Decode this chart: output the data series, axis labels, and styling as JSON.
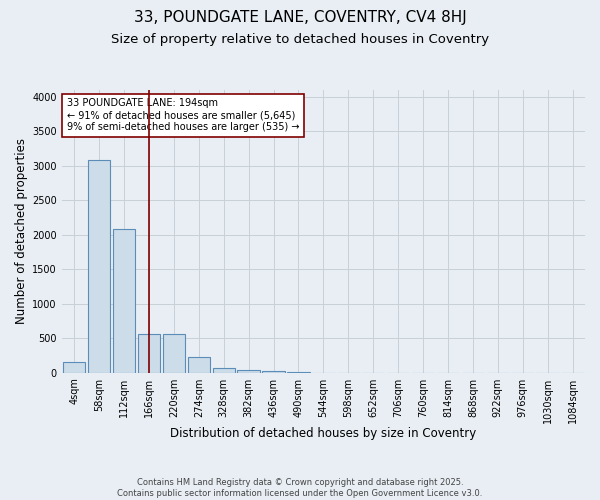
{
  "title_line1": "33, POUNDGATE LANE, COVENTRY, CV4 8HJ",
  "title_line2": "Size of property relative to detached houses in Coventry",
  "xlabel": "Distribution of detached houses by size in Coventry",
  "ylabel": "Number of detached properties",
  "bin_labels": [
    "4sqm",
    "58sqm",
    "112sqm",
    "166sqm",
    "220sqm",
    "274sqm",
    "328sqm",
    "382sqm",
    "436sqm",
    "490sqm",
    "544sqm",
    "598sqm",
    "652sqm",
    "706sqm",
    "760sqm",
    "814sqm",
    "868sqm",
    "922sqm",
    "976sqm",
    "1030sqm",
    "1084sqm"
  ],
  "bar_values": [
    150,
    3080,
    2080,
    565,
    565,
    230,
    75,
    45,
    30,
    15,
    0,
    0,
    0,
    0,
    0,
    0,
    0,
    0,
    0,
    0,
    0
  ],
  "bar_color": "#ccdce8",
  "bar_edge_color": "#5b8db8",
  "grid_color": "#c8d0d8",
  "background_color": "#e8eef4",
  "vline_color": "#800000",
  "annotation_text": "33 POUNDGATE LANE: 194sqm\n← 91% of detached houses are smaller (5,645)\n9% of semi-detached houses are larger (535) →",
  "annotation_box_color": "#ffffff",
  "annotation_edge_color": "#800000",
  "ylim": [
    0,
    4100
  ],
  "yticks": [
    0,
    500,
    1000,
    1500,
    2000,
    2500,
    3000,
    3500,
    4000
  ],
  "footnote": "Contains HM Land Registry data © Crown copyright and database right 2025.\nContains public sector information licensed under the Open Government Licence v3.0.",
  "title_fontsize": 11,
  "subtitle_fontsize": 9.5,
  "label_fontsize": 8.5,
  "tick_fontsize": 7,
  "annotation_fontsize": 7
}
